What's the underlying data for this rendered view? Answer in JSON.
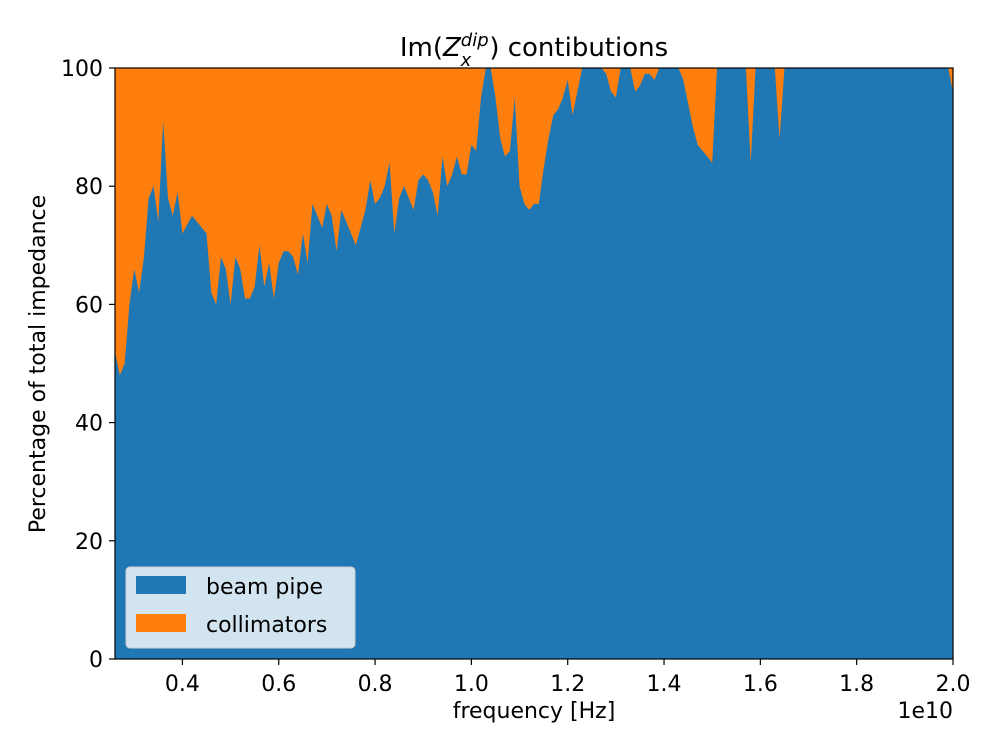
{
  "chart_data": {
    "type": "area",
    "stacked": true,
    "title": "Im(Z_x^dip) contibutions",
    "title_parts": {
      "prefix": "Im(",
      "base": "Z",
      "sub": "x",
      "sup": "dip",
      "suffix": ") contibutions"
    },
    "xlabel": "frequency [Hz]",
    "ylabel": "Percentage of total impedance",
    "x_offset_label": "1e10",
    "xlim": [
      0.26,
      2.0
    ],
    "ylim": [
      0,
      100
    ],
    "x_ticks": [
      0.4,
      0.6,
      0.8,
      1.0,
      1.2,
      1.4,
      1.6,
      1.8,
      2.0
    ],
    "x_tick_labels": [
      "0.4",
      "0.6",
      "0.8",
      "1.0",
      "1.2",
      "1.4",
      "1.6",
      "1.8",
      "2.0"
    ],
    "y_ticks": [
      0,
      20,
      40,
      60,
      80,
      100
    ],
    "y_tick_labels": [
      "0",
      "20",
      "40",
      "60",
      "80",
      "100"
    ],
    "legend_position": "lower-left",
    "series": [
      {
        "name": "beam pipe",
        "color": "#1f77b4",
        "x": [
          0.26,
          0.27,
          0.28,
          0.29,
          0.3,
          0.31,
          0.32,
          0.33,
          0.34,
          0.35,
          0.36,
          0.37,
          0.38,
          0.39,
          0.4,
          0.42,
          0.43,
          0.44,
          0.45,
          0.46,
          0.47,
          0.48,
          0.49,
          0.5,
          0.51,
          0.52,
          0.53,
          0.54,
          0.55,
          0.56,
          0.57,
          0.58,
          0.59,
          0.6,
          0.61,
          0.62,
          0.63,
          0.64,
          0.65,
          0.66,
          0.67,
          0.68,
          0.69,
          0.7,
          0.71,
          0.72,
          0.73,
          0.74,
          0.75,
          0.76,
          0.77,
          0.78,
          0.79,
          0.8,
          0.81,
          0.82,
          0.83,
          0.84,
          0.85,
          0.86,
          0.87,
          0.88,
          0.89,
          0.9,
          0.91,
          0.92,
          0.93,
          0.94,
          0.95,
          0.96,
          0.97,
          0.98,
          0.99,
          1.0,
          1.01,
          1.02,
          1.03,
          1.04,
          1.05,
          1.06,
          1.07,
          1.08,
          1.09,
          1.1,
          1.11,
          1.12,
          1.13,
          1.14,
          1.15,
          1.16,
          1.17,
          1.18,
          1.19,
          1.2,
          1.21,
          1.22,
          1.23,
          1.24,
          1.25,
          1.26,
          1.27,
          1.28,
          1.29,
          1.3,
          1.31,
          1.32,
          1.33,
          1.34,
          1.35,
          1.36,
          1.37,
          1.38,
          1.39,
          1.4,
          1.41,
          1.42,
          1.43,
          1.44,
          1.45,
          1.46,
          1.47,
          1.48,
          1.49,
          1.5,
          1.51,
          1.52,
          1.53,
          1.54,
          1.55,
          1.56,
          1.57,
          1.58,
          1.59,
          1.6,
          1.61,
          1.62,
          1.63,
          1.64,
          1.65,
          1.66,
          1.67,
          1.68,
          1.69,
          1.7,
          1.71,
          1.72,
          1.73,
          1.74,
          1.75,
          1.76,
          1.77,
          1.78,
          1.79,
          1.8,
          1.81,
          1.82,
          1.83,
          1.84,
          1.85,
          1.86,
          1.87,
          1.88,
          1.89,
          1.9,
          1.91,
          1.92,
          1.93,
          1.94,
          1.95,
          1.96,
          1.97,
          1.98,
          1.99,
          2.0
        ],
        "values": [
          52,
          48,
          50,
          60,
          66,
          62,
          68,
          78,
          80,
          74,
          91,
          78,
          75,
          79,
          72,
          75,
          74,
          73,
          72,
          62,
          60,
          68,
          66,
          60,
          68,
          66,
          61,
          61,
          63,
          70,
          63,
          67,
          61,
          67,
          69,
          69,
          68,
          65,
          72,
          67,
          77,
          75,
          73,
          77,
          75,
          69,
          76,
          74,
          72,
          70,
          73,
          76,
          81,
          77,
          78,
          80,
          84,
          72,
          78,
          80,
          78,
          76,
          81,
          82,
          81,
          79,
          75,
          85,
          80,
          82,
          85,
          82,
          82,
          87,
          86,
          95,
          100,
          100,
          95,
          88,
          85,
          86,
          95,
          80,
          77,
          76,
          77,
          77,
          83,
          88,
          92,
          93,
          95,
          98,
          92,
          96,
          100,
          100,
          100,
          100,
          100,
          99,
          96,
          95,
          100,
          100,
          100,
          96,
          97,
          99,
          99,
          98,
          100,
          100,
          100,
          100,
          100,
          98,
          94,
          90,
          87,
          86,
          85,
          84,
          100,
          100,
          100,
          100,
          100,
          100,
          100,
          84,
          100,
          100,
          100,
          100,
          100,
          88,
          100,
          100,
          100,
          100,
          100,
          100,
          100,
          100,
          100,
          100,
          100,
          100,
          100,
          100,
          100,
          100,
          100,
          100,
          100,
          100,
          100,
          100,
          100,
          100,
          100,
          100,
          100,
          100,
          100,
          100,
          100,
          100,
          100,
          100,
          100,
          96
        ]
      },
      {
        "name": "collimators",
        "color": "#ff7f0e"
      }
    ]
  }
}
